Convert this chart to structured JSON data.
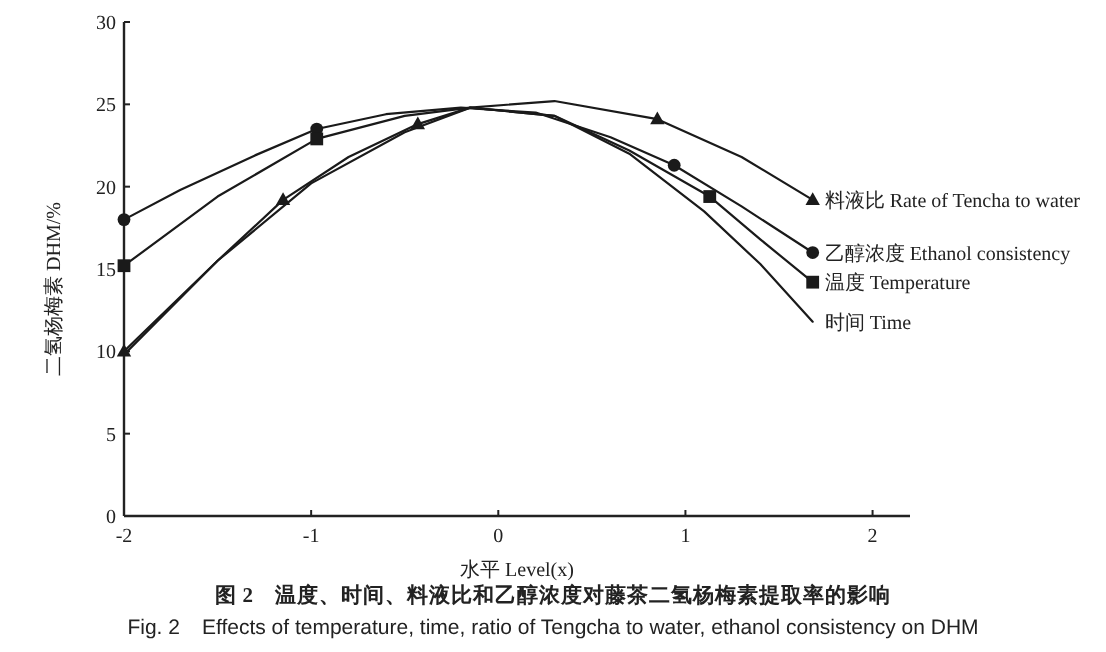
{
  "chart_data": {
    "type": "line",
    "ylabel": "二氢杨梅素 DHM/%",
    "xlabel": "水平 Level(x)",
    "xlim": [
      -2,
      2.2
    ],
    "ylim": [
      0,
      30
    ],
    "xticks": [
      -2,
      -1,
      0,
      1,
      2
    ],
    "yticks": [
      0,
      5,
      10,
      15,
      20,
      25,
      30
    ],
    "series": [
      {
        "name": "料液比 Rate of Tencha to water",
        "color": "#1a1a1a",
        "x": [
          -2,
          -1.5,
          -1.15,
          -0.8,
          -0.43,
          -0.15,
          0.3,
          0.85,
          1.3,
          1.68
        ],
        "values": [
          10,
          15.5,
          19.2,
          21.8,
          23.8,
          24.8,
          25.2,
          24.1,
          21.8,
          19.2
        ]
      },
      {
        "name": "乙醇浓度 Ethanol consistency",
        "color": "#1a1a1a",
        "x": [
          -2,
          -1.7,
          -1.3,
          -0.97,
          -0.6,
          -0.2,
          0.2,
          0.6,
          0.94,
          1.3,
          1.68
        ],
        "values": [
          18,
          19.8,
          21.9,
          23.5,
          24.4,
          24.8,
          24.5,
          23,
          21.3,
          18.8,
          16
        ]
      },
      {
        "name": "温度 Temperature",
        "color": "#1a1a1a",
        "x": [
          -2,
          -1.5,
          -0.97,
          -0.5,
          -0.15,
          0.3,
          0.7,
          1.13,
          1.4,
          1.68
        ],
        "values": [
          15.2,
          19.4,
          22.9,
          24.3,
          24.8,
          24.3,
          22.2,
          19.4,
          16.8,
          14.2
        ]
      },
      {
        "name": "时间 Time",
        "color": "#1a1a1a",
        "x": [
          -2,
          -1.5,
          -1,
          -0.5,
          -0.15,
          0.3,
          0.7,
          1.1,
          1.4,
          1.68
        ],
        "values": [
          9.8,
          15.5,
          20.2,
          23.3,
          24.8,
          24.3,
          22,
          18.5,
          15.3,
          11.8
        ]
      },
      {
        "type": "scatter",
        "color": "#1a1a1a",
        "marker": "triangle",
        "x": [
          -2,
          -1.15,
          -0.43,
          0.85,
          1.68
        ],
        "values": [
          10,
          19.2,
          23.8,
          24.1,
          19.2
        ]
      },
      {
        "type": "scatter",
        "color": "#1a1a1a",
        "marker": "circle",
        "x": [
          -2,
          -0.97,
          0.94,
          1.68
        ],
        "values": [
          18,
          23.5,
          21.3,
          16
        ]
      },
      {
        "type": "scatter",
        "color": "#1a1a1a",
        "marker": "square",
        "x": [
          -2,
          -0.97,
          1.13,
          1.68
        ],
        "values": [
          15.2,
          22.9,
          19.4,
          14.2
        ]
      }
    ],
    "annotations": [
      "图 2　温度、时间、料液比和乙醇浓度对藤茶二氢杨梅素提取率的影响",
      "Fig. 2　Effects of temperature, time, ratio of Tengcha to water, ethanol consistency on DHM"
    ]
  }
}
